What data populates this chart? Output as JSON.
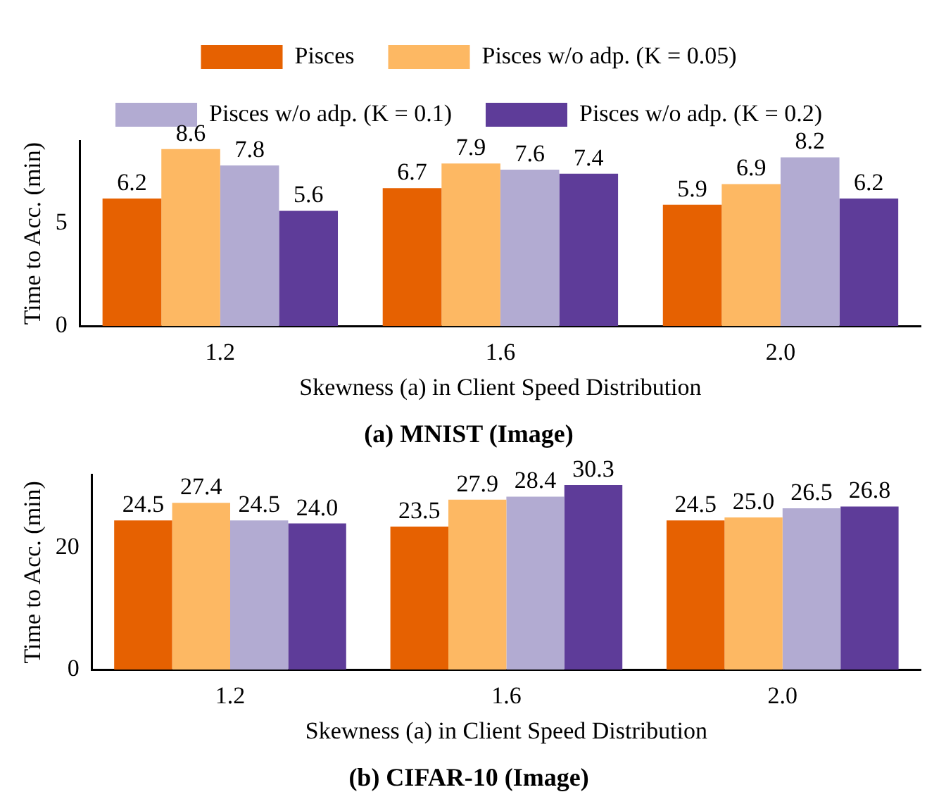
{
  "chart_data": [
    {
      "type": "bar",
      "title": "(a) MNIST (Image)",
      "xlabel": "Skewness (a) in Client Speed Distribution",
      "ylabel": "Time to Acc. (min)",
      "categories": [
        "1.2",
        "1.6",
        "2.0"
      ],
      "series": [
        {
          "name": "Pisces",
          "color": "#e66101",
          "values": [
            6.2,
            6.7,
            5.9
          ]
        },
        {
          "name": "Pisces w/o adp. (K = 0.05)",
          "color": "#fdb863",
          "values": [
            8.6,
            7.9,
            6.9
          ]
        },
        {
          "name": "Pisces w/o adp. (K = 0.1)",
          "color": "#b2abd2",
          "values": [
            7.8,
            7.6,
            8.2
          ]
        },
        {
          "name": "Pisces w/o adp. (K = 0.2)",
          "color": "#5e3c99",
          "values": [
            5.6,
            7.4,
            6.2
          ]
        }
      ],
      "ylim": [
        0,
        9
      ],
      "yticks": [
        0,
        5
      ],
      "grid": false,
      "legend": "top",
      "data_labels": true
    },
    {
      "type": "bar",
      "title": "(b) CIFAR-10 (Image)",
      "xlabel": "Skewness (a) in Client Speed Distribution",
      "ylabel": "Time to Acc. (min)",
      "categories": [
        "1.2",
        "1.6",
        "2.0"
      ],
      "series": [
        {
          "color": "#e66101",
          "values": [
            24.5,
            23.5,
            24.5
          ],
          "value_labels": [
            "24.5",
            "23.5",
            "24.5"
          ]
        },
        {
          "color": "#fdb863",
          "values": [
            27.4,
            27.9,
            25
          ],
          "value_labels": [
            "27.4",
            "27.9",
            "25.0"
          ]
        },
        {
          "color": "#b2abd2",
          "values": [
            24.5,
            28.4,
            26.5
          ],
          "value_labels": [
            "24.5",
            "28.4",
            "26.5"
          ]
        },
        {
          "color": "#5e3c99",
          "values": [
            24,
            30.3,
            26.8
          ],
          "value_labels": [
            "24.0",
            "30.3",
            "26.8"
          ]
        }
      ],
      "ylim": [
        0,
        32
      ],
      "yticks": [
        0,
        20
      ],
      "grid": false
    }
  ]
}
